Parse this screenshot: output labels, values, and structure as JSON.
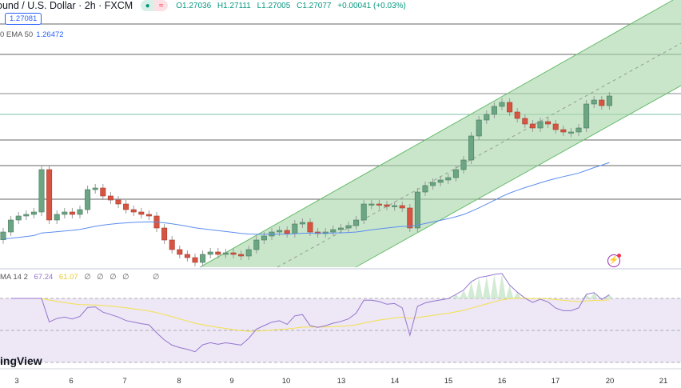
{
  "header": {
    "symbol": "ound / U.S. Dollar · 2h · FXCM",
    "status_icons": [
      "market-open-dot-icon",
      "delayed-data-icon"
    ],
    "open": "O1.27036",
    "high": "H1.27111",
    "low": "L1.27005",
    "close": "C1.27077",
    "change": "+0.00041 (+0.03%)"
  },
  "price_label": "1.27081",
  "ema_legend": {
    "label": "0 EMA 50",
    "value": "1.26472"
  },
  "rsi_legend": {
    "label": "MA 14 2",
    "rsi": "67.24",
    "ma": "61.07",
    "nulls": [
      "∅",
      "∅",
      "∅",
      "∅",
      "∅"
    ]
  },
  "watermark": "ingView",
  "colors": {
    "up": "#6ba583",
    "down": "#d75442",
    "ema": "#5b8def",
    "channel": "#a5d6a7",
    "rsi": "#9575cd",
    "rsi_ma": "#f5e04c",
    "rsi_band": "#ede7f6"
  },
  "chart_data": {
    "type": "candlestick",
    "symbol": "GBPUSD 2h",
    "first_open": 1.251,
    "closes": [
      1.25207,
      1.25372,
      1.25427,
      1.25449,
      1.25482,
      1.26065,
      1.25372,
      1.25449,
      1.25482,
      1.25449,
      1.25515,
      1.2579,
      1.25812,
      1.25702,
      1.25647,
      1.25592,
      1.25515,
      1.25482,
      1.25449,
      1.25427,
      1.25262,
      1.25097,
      1.24965,
      1.24899,
      1.24855,
      1.24789,
      1.24899,
      1.24932,
      1.24899,
      1.24921,
      1.24899,
      1.24877,
      1.24965,
      1.25097,
      1.25152,
      1.25207,
      1.25229,
      1.25185,
      1.25317,
      1.25339,
      1.25207,
      1.25185,
      1.25207,
      1.2524,
      1.25262,
      1.25295,
      1.25372,
      1.25592,
      1.25592,
      1.25581,
      1.25559,
      1.2557,
      1.25537,
      1.25262,
      1.25757,
      1.25845,
      1.25889,
      1.25922,
      1.25955,
      1.26065,
      1.26197,
      1.26527,
      1.26747,
      1.26824,
      1.26934,
      1.26989,
      1.26857,
      1.26769,
      1.26692,
      1.26637,
      1.26725,
      1.26692,
      1.26615,
      1.26582,
      1.26582,
      1.26637,
      1.26967,
      1.27022,
      1.26945,
      1.27077
    ],
    "indicators": [
      "EMA 50",
      "RSI 14",
      "RSI MA"
    ],
    "rsi_levels": [
      70,
      50,
      30
    ],
    "x_tick_labels": [
      "3",
      "6",
      "7",
      "8",
      "9",
      "10",
      "13",
      "14",
      "15",
      "16",
      "17",
      "20",
      "21"
    ],
    "grid": false
  }
}
